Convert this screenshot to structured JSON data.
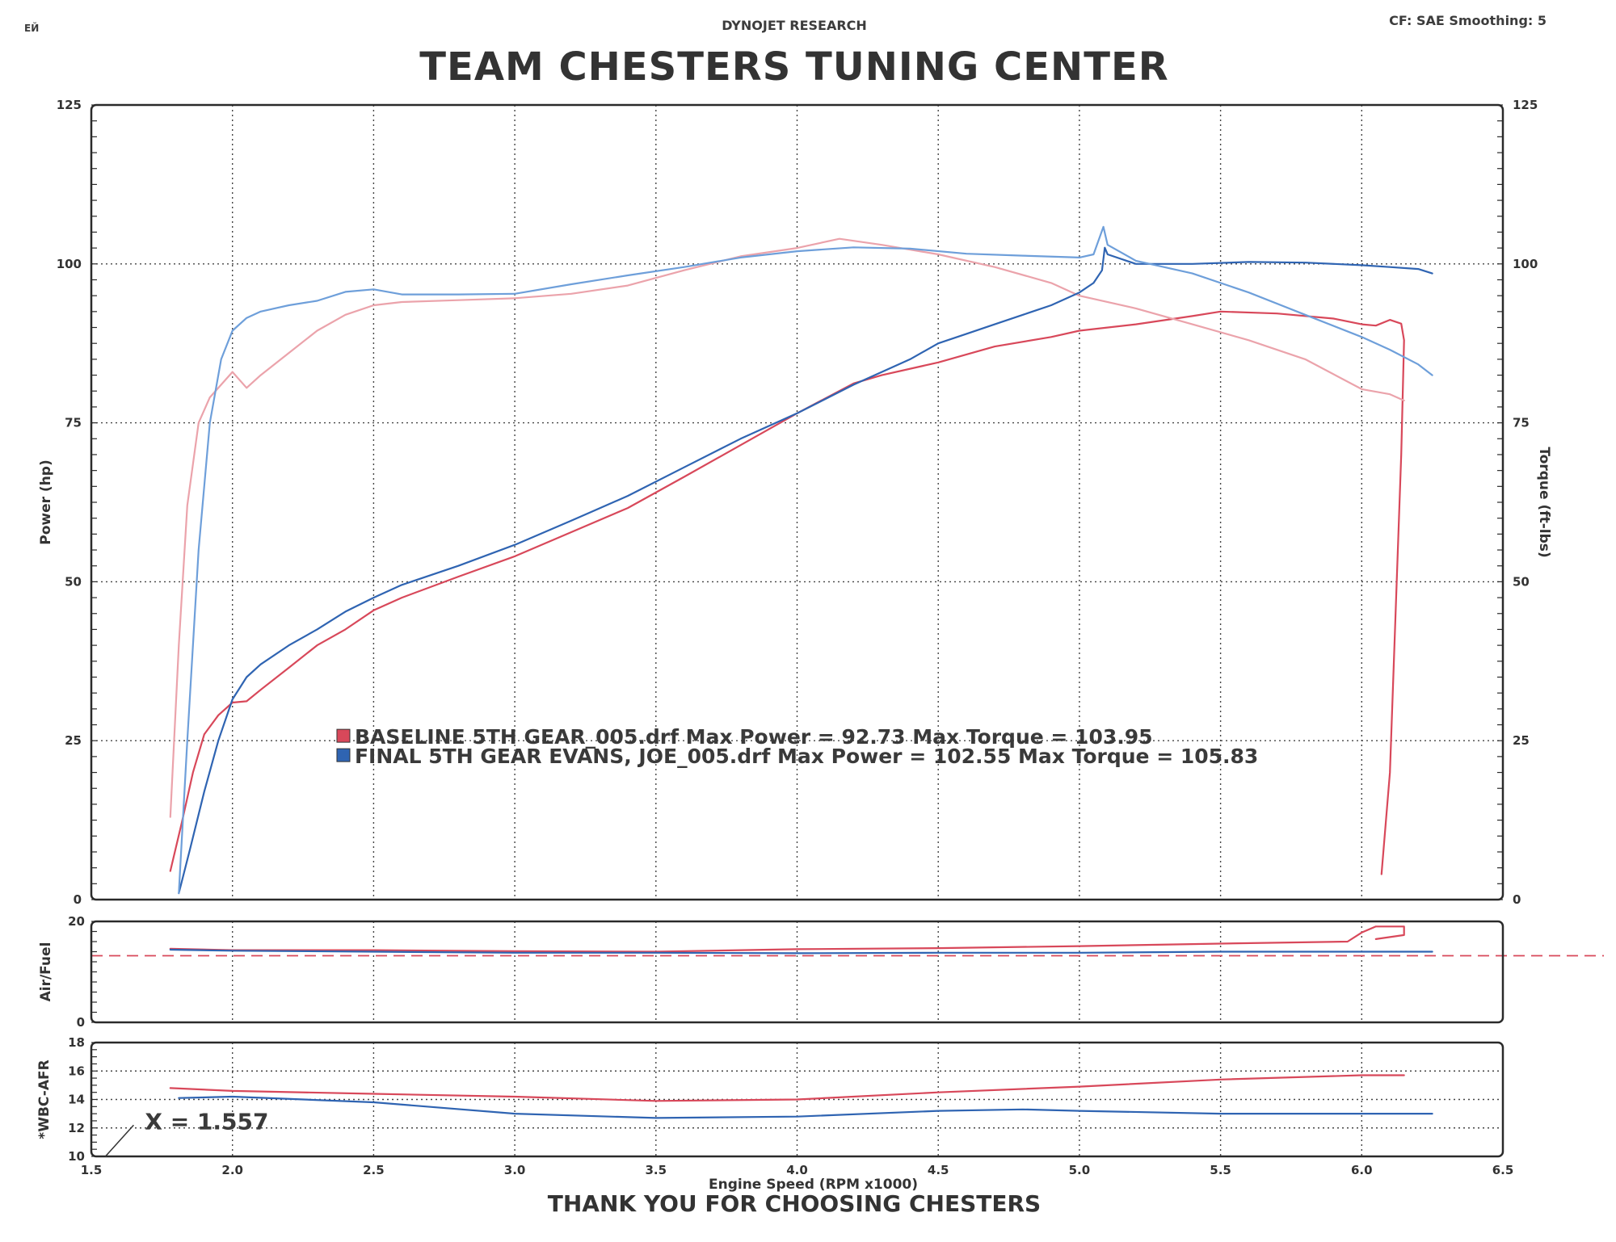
{
  "header": {
    "company": "DYNOJET RESEARCH",
    "settings": "CF: SAE  Smoothing: 5",
    "title": "TEAM CHESTERS TUNING CENTER",
    "footer": "THANK YOU FOR CHOOSING CHESTERS",
    "corner_mark": "ЕЙ"
  },
  "colors": {
    "baseline": "#d8485a",
    "baseline_light": "#eba3ab",
    "final": "#2f64b2",
    "final_light": "#6e9fda",
    "grid": "#444444",
    "frame": "#2a2a2a"
  },
  "chart_data": [
    {
      "type": "line",
      "panel": "power-torque",
      "xlabel": "Engine Speed (RPM x1000)",
      "ylabel": "Power (hp)",
      "y2label": "Torque (ft-lbs)",
      "xlim": [
        1.5,
        6.5
      ],
      "ylim": [
        0,
        125
      ],
      "y2lim": [
        0,
        125
      ],
      "x_ticks": [
        "1.5",
        "2.0",
        "2.5",
        "3.0",
        "3.5",
        "4.0",
        "4.5",
        "5.0",
        "5.5",
        "6.0",
        "6.5"
      ],
      "y_ticks": [
        "0",
        "25",
        "50",
        "75",
        "100",
        "125"
      ],
      "y2_ticks": [
        "0",
        "25",
        "50",
        "75",
        "100",
        "125"
      ],
      "grid": true,
      "series": [
        {
          "name": "BASELINE 5TH GEAR_005.drf",
          "quantity": "power",
          "color": "#d8485a",
          "points": [
            [
              1.78,
              4.5
            ],
            [
              1.82,
              12
            ],
            [
              1.86,
              20
            ],
            [
              1.9,
              26
            ],
            [
              1.95,
              29
            ],
            [
              2.0,
              31
            ],
            [
              2.05,
              31.2
            ],
            [
              2.1,
              33
            ],
            [
              2.2,
              36.5
            ],
            [
              2.3,
              40
            ],
            [
              2.4,
              42.5
            ],
            [
              2.5,
              45.5
            ],
            [
              2.6,
              47.5
            ],
            [
              2.8,
              50.8
            ],
            [
              3.0,
              54
            ],
            [
              3.2,
              57.8
            ],
            [
              3.4,
              61.6
            ],
            [
              3.6,
              66.5
            ],
            [
              3.8,
              71.5
            ],
            [
              4.0,
              76.5
            ],
            [
              4.2,
              81.2
            ],
            [
              4.3,
              82.5
            ],
            [
              4.5,
              84.5
            ],
            [
              4.7,
              87
            ],
            [
              4.9,
              88.5
            ],
            [
              5.0,
              89.5
            ],
            [
              5.2,
              90.5
            ],
            [
              5.4,
              91.8
            ],
            [
              5.5,
              92.5
            ],
            [
              5.7,
              92.2
            ],
            [
              5.9,
              91.4
            ],
            [
              6.0,
              90.5
            ],
            [
              6.05,
              90.3
            ],
            [
              6.1,
              91.2
            ],
            [
              6.14,
              90.6
            ],
            [
              6.15,
              88
            ],
            [
              6.14,
              70
            ],
            [
              6.12,
              45
            ],
            [
              6.1,
              20
            ],
            [
              6.07,
              4
            ]
          ]
        },
        {
          "name": "BASELINE 5TH GEAR_005.drf",
          "quantity": "torque",
          "color": "#eba3ab",
          "points": [
            [
              1.78,
              13
            ],
            [
              1.81,
              40
            ],
            [
              1.84,
              62
            ],
            [
              1.88,
              75
            ],
            [
              1.92,
              79
            ],
            [
              1.96,
              81
            ],
            [
              2.0,
              83
            ],
            [
              2.05,
              80.5
            ],
            [
              2.1,
              82.5
            ],
            [
              2.2,
              86
            ],
            [
              2.3,
              89.5
            ],
            [
              2.4,
              92
            ],
            [
              2.5,
              93.5
            ],
            [
              2.6,
              94
            ],
            [
              2.8,
              94.3
            ],
            [
              3.0,
              94.6
            ],
            [
              3.2,
              95.3
            ],
            [
              3.4,
              96.6
            ],
            [
              3.6,
              99
            ],
            [
              3.8,
              101.2
            ],
            [
              4.0,
              102.5
            ],
            [
              4.15,
              103.95
            ],
            [
              4.3,
              103
            ],
            [
              4.5,
              101.5
            ],
            [
              4.7,
              99.5
            ],
            [
              4.9,
              97
            ],
            [
              5.0,
              95
            ],
            [
              5.2,
              93
            ],
            [
              5.4,
              90.5
            ],
            [
              5.6,
              88
            ],
            [
              5.8,
              85
            ],
            [
              6.0,
              80.3
            ],
            [
              6.1,
              79.5
            ],
            [
              6.15,
              78.5
            ]
          ]
        },
        {
          "name": "FINAL 5TH GEAR EVANS, JOE_005.drf",
          "quantity": "power",
          "color": "#2f64b2",
          "points": [
            [
              1.81,
              1
            ],
            [
              1.85,
              8
            ],
            [
              1.9,
              17
            ],
            [
              1.95,
              25
            ],
            [
              2.0,
              31.5
            ],
            [
              2.05,
              35
            ],
            [
              2.1,
              37
            ],
            [
              2.2,
              40
            ],
            [
              2.3,
              42.5
            ],
            [
              2.4,
              45.3
            ],
            [
              2.5,
              47.5
            ],
            [
              2.6,
              49.5
            ],
            [
              2.8,
              52.5
            ],
            [
              3.0,
              55.8
            ],
            [
              3.2,
              59.6
            ],
            [
              3.4,
              63.5
            ],
            [
              3.6,
              68
            ],
            [
              3.8,
              72.5
            ],
            [
              4.0,
              76.5
            ],
            [
              4.2,
              81
            ],
            [
              4.4,
              85
            ],
            [
              4.5,
              87.5
            ],
            [
              4.6,
              89
            ],
            [
              4.7,
              90.5
            ],
            [
              4.8,
              92
            ],
            [
              4.9,
              93.5
            ],
            [
              5.0,
              95.5
            ],
            [
              5.05,
              97
            ],
            [
              5.08,
              99
            ],
            [
              5.09,
              102.55
            ],
            [
              5.1,
              101.5
            ],
            [
              5.2,
              100
            ],
            [
              5.4,
              100
            ],
            [
              5.6,
              100.3
            ],
            [
              5.8,
              100.2
            ],
            [
              6.0,
              99.8
            ],
            [
              6.1,
              99.5
            ],
            [
              6.2,
              99.2
            ],
            [
              6.25,
              98.5
            ]
          ]
        },
        {
          "name": "FINAL 5TH GEAR EVANS, JOE_005.drf",
          "quantity": "torque",
          "color": "#6e9fda",
          "points": [
            [
              1.81,
              1
            ],
            [
              1.84,
              25
            ],
            [
              1.88,
              55
            ],
            [
              1.92,
              75
            ],
            [
              1.96,
              85
            ],
            [
              2.0,
              89.5
            ],
            [
              2.05,
              91.5
            ],
            [
              2.1,
              92.5
            ],
            [
              2.2,
              93.5
            ],
            [
              2.3,
              94.2
            ],
            [
              2.4,
              95.6
            ],
            [
              2.5,
              96
            ],
            [
              2.6,
              95.2
            ],
            [
              2.8,
              95.2
            ],
            [
              3.0,
              95.3
            ],
            [
              3.2,
              96.8
            ],
            [
              3.4,
              98.2
            ],
            [
              3.6,
              99.5
            ],
            [
              3.8,
              101
            ],
            [
              4.0,
              102
            ],
            [
              4.2,
              102.6
            ],
            [
              4.4,
              102.4
            ],
            [
              4.6,
              101.6
            ],
            [
              4.8,
              101.3
            ],
            [
              5.0,
              101
            ],
            [
              5.05,
              101.5
            ],
            [
              5.085,
              105.83
            ],
            [
              5.1,
              103
            ],
            [
              5.2,
              100.5
            ],
            [
              5.4,
              98.5
            ],
            [
              5.6,
              95.5
            ],
            [
              5.8,
              92
            ],
            [
              6.0,
              88.5
            ],
            [
              6.1,
              86.5
            ],
            [
              6.2,
              84.2
            ],
            [
              6.25,
              82.5
            ]
          ]
        }
      ],
      "legend": [
        {
          "label": "BASELINE 5TH GEAR_005.drf Max Power = 92.73      Max Torque = 103.95",
          "color": "#d8485a"
        },
        {
          "label": "FINAL 5TH GEAR EVANS, JOE_005.drf Max Power = 102.55      Max Torque = 105.83",
          "color": "#2f64b2"
        }
      ]
    },
    {
      "type": "line",
      "panel": "air-fuel",
      "ylabel": "Air/Fuel",
      "xlim": [
        1.5,
        6.5
      ],
      "ylim": [
        0,
        20
      ],
      "y_ticks": [
        "0",
        "20"
      ],
      "reference_line": 13.2,
      "series": [
        {
          "name": "BASELINE 5TH GEAR_005.drf",
          "color": "#d8485a",
          "points": [
            [
              1.78,
              14.6
            ],
            [
              2.0,
              14.3
            ],
            [
              2.5,
              14.3
            ],
            [
              3.0,
              14.1
            ],
            [
              3.5,
              14.0
            ],
            [
              4.0,
              14.5
            ],
            [
              4.5,
              14.7
            ],
            [
              5.0,
              15.1
            ],
            [
              5.5,
              15.6
            ],
            [
              5.95,
              16.0
            ],
            [
              6.0,
              17.8
            ],
            [
              6.05,
              19.0
            ],
            [
              6.15,
              19.0
            ],
            [
              6.15,
              17.3
            ],
            [
              6.05,
              16.5
            ]
          ]
        },
        {
          "name": "FINAL 5TH GEAR EVANS, JOE_005.drf",
          "color": "#2f64b2",
          "points": [
            [
              1.78,
              14.4
            ],
            [
              2.0,
              14.2
            ],
            [
              2.5,
              14.0
            ],
            [
              3.0,
              13.8
            ],
            [
              3.5,
              13.8
            ],
            [
              4.0,
              13.7
            ],
            [
              4.5,
              13.8
            ],
            [
              5.0,
              13.8
            ],
            [
              5.5,
              14.0
            ],
            [
              6.0,
              14.0
            ],
            [
              6.25,
              14.0
            ]
          ]
        }
      ]
    },
    {
      "type": "line",
      "panel": "wbc-afr",
      "ylabel": "*WBC-AFR",
      "xlim": [
        1.5,
        6.5
      ],
      "ylim": [
        10,
        18
      ],
      "y_ticks": [
        "10",
        "12",
        "14",
        "16",
        "18"
      ],
      "annotation": "X = 1.557",
      "series": [
        {
          "name": "BASELINE 5TH GEAR_005.drf",
          "color": "#d8485a",
          "points": [
            [
              1.78,
              14.8
            ],
            [
              2.0,
              14.6
            ],
            [
              2.5,
              14.4
            ],
            [
              3.0,
              14.2
            ],
            [
              3.5,
              13.9
            ],
            [
              4.0,
              14.0
            ],
            [
              4.5,
              14.5
            ],
            [
              5.0,
              14.9
            ],
            [
              5.5,
              15.4
            ],
            [
              6.0,
              15.7
            ],
            [
              6.15,
              15.7
            ]
          ]
        },
        {
          "name": "FINAL 5TH GEAR EVANS, JOE_005.drf",
          "color": "#2f64b2",
          "points": [
            [
              1.81,
              14.1
            ],
            [
              2.0,
              14.2
            ],
            [
              2.5,
              13.8
            ],
            [
              3.0,
              13.0
            ],
            [
              3.5,
              12.7
            ],
            [
              4.0,
              12.8
            ],
            [
              4.5,
              13.2
            ],
            [
              4.8,
              13.3
            ],
            [
              5.0,
              13.2
            ],
            [
              5.5,
              13.0
            ],
            [
              6.0,
              13.0
            ],
            [
              6.25,
              13.0
            ]
          ]
        }
      ]
    }
  ]
}
